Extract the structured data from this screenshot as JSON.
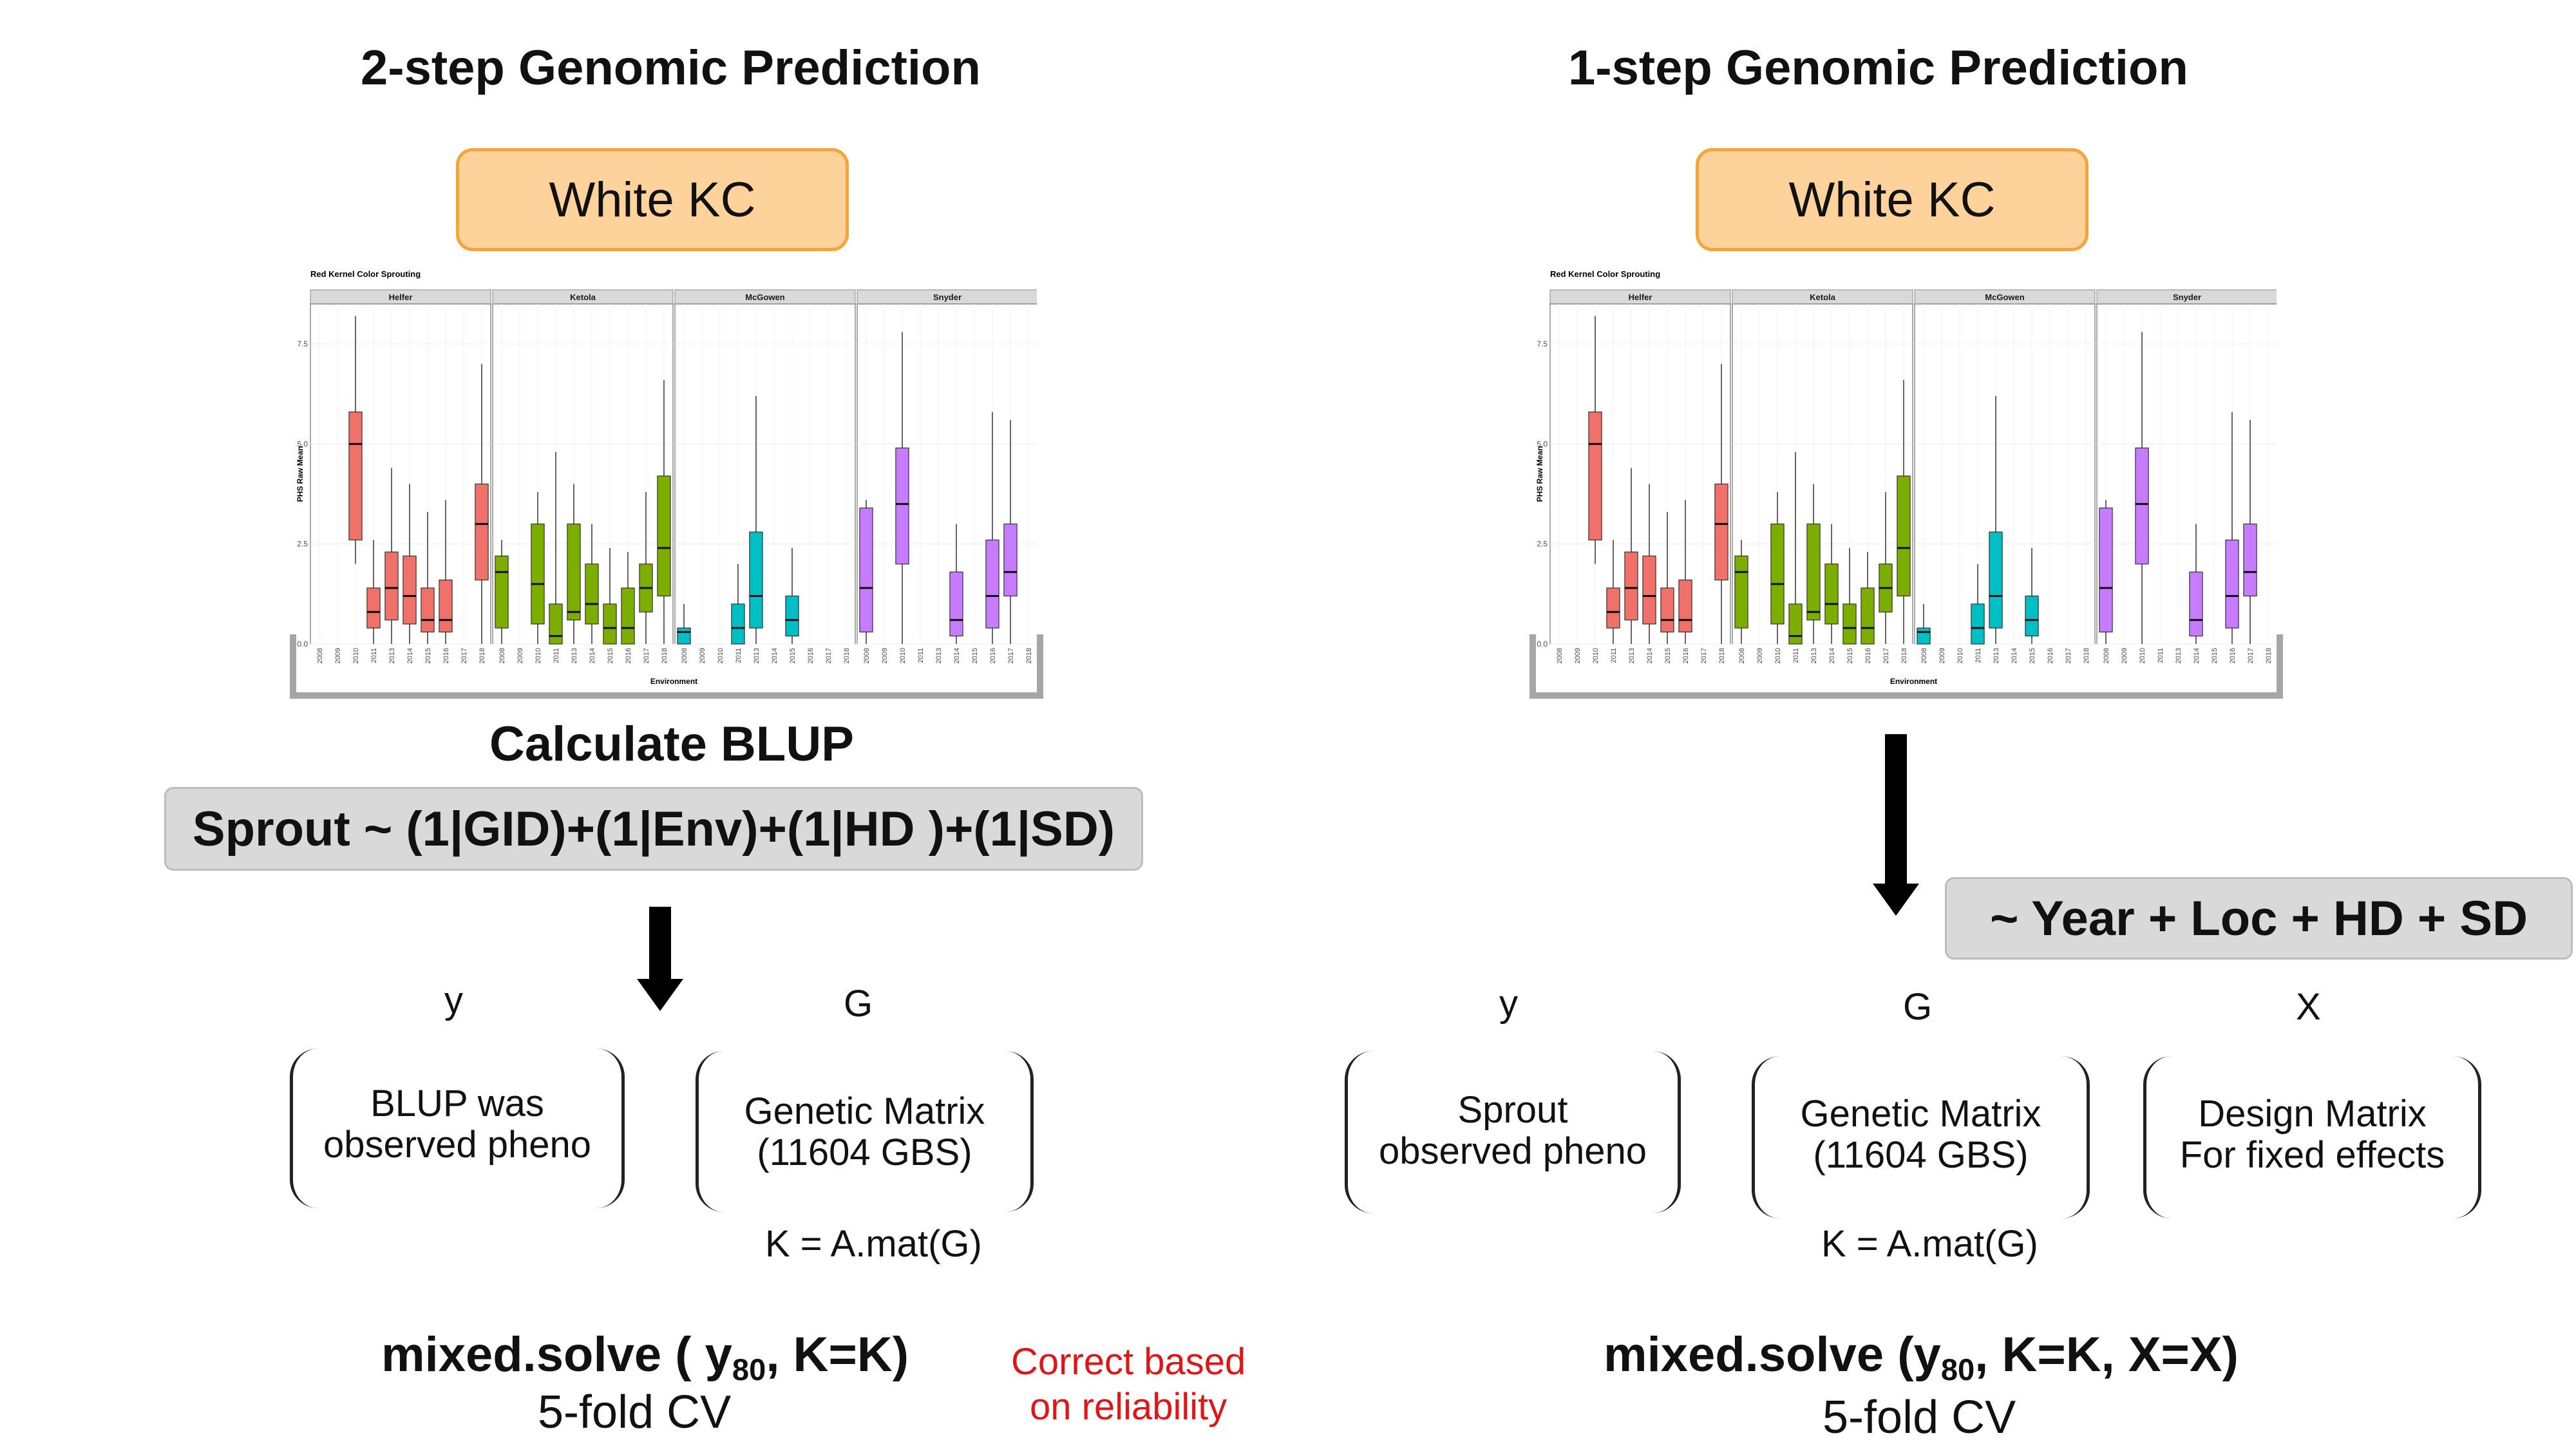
{
  "left": {
    "title": "2-step Genomic Prediction",
    "trait_label": "White KC",
    "calc_heading": "Calculate BLUP",
    "model_formula": "Sprout ~ (1|GID)+(1|Env)+(1|HD )+(1|SD)",
    "y_label": "y",
    "g_label": "G",
    "y_text_l1": "BLUP was",
    "y_text_l2": "observed pheno",
    "g_text_l1": "Genetic Matrix",
    "g_text_l2": "(11604 GBS)",
    "kinship": "K = A.mat(G)",
    "solve_pre": "mixed.solve ( y",
    "solve_sub": "80",
    "solve_post": ", K=K)",
    "cv": "5-fold CV",
    "note_l1": "Correct based",
    "note_l2": "on reliability"
  },
  "right": {
    "title": "1-step Genomic Prediction",
    "trait_label": "White KC",
    "fixed_formula": "~ Year + Loc + HD + SD",
    "y_label": "y",
    "g_label": "G",
    "x_label": "X",
    "y_text_l1": "Sprout",
    "y_text_l2": "observed pheno",
    "g_text_l1": "Genetic Matrix",
    "g_text_l2": "(11604 GBS)",
    "x_text_l1": "Design Matrix",
    "x_text_l2": "For fixed effects",
    "kinship": "K = A.mat(G)",
    "solve_pre": "mixed.solve (y",
    "solve_sub": "80",
    "solve_post": ", K=K, X=X)",
    "cv": "5-fold CV"
  },
  "colors": {
    "trait_fill": "#fdd39b",
    "trait_border": "#f5a43a",
    "formula_box": "#d9d9d9",
    "note_red": "#e01616",
    "Helfer": "#f0706a",
    "Ketola": "#7cae00",
    "McGowen": "#00bfc4",
    "Snyder": "#c77cff"
  },
  "chart_data": [
    {
      "type": "boxplot",
      "title": "Red Kernel Color Sprouting",
      "xlabel": "Environment",
      "ylabel": "PHS Raw Mean",
      "ylim": [
        0,
        8.5
      ],
      "yticks": [
        0.0,
        2.5,
        5.0,
        7.5
      ],
      "ytick_labels": [
        "0.0",
        "2.5",
        "5.0",
        "7.5"
      ],
      "categories": [
        "2008",
        "2009",
        "2010",
        "2011",
        "2013",
        "2014",
        "2015",
        "2016",
        "2017",
        "2018"
      ],
      "panels": [
        {
          "name": "Helfer",
          "boxes": [
            {
              "year": "2010",
              "min": 2.0,
              "q1": 2.6,
              "median": 5.0,
              "q3": 5.8,
              "max": 8.2
            },
            {
              "year": "2011",
              "min": 0.0,
              "q1": 0.4,
              "median": 0.8,
              "q3": 1.4,
              "max": 2.6
            },
            {
              "year": "2013",
              "min": 0.0,
              "q1": 0.6,
              "median": 1.4,
              "q3": 2.3,
              "max": 4.4
            },
            {
              "year": "2014",
              "min": 0.0,
              "q1": 0.5,
              "median": 1.2,
              "q3": 2.2,
              "max": 4.0
            },
            {
              "year": "2015",
              "min": 0.0,
              "q1": 0.3,
              "median": 0.6,
              "q3": 1.4,
              "max": 3.3
            },
            {
              "year": "2016",
              "min": 0.0,
              "q1": 0.3,
              "median": 0.6,
              "q3": 1.6,
              "max": 3.6
            },
            {
              "year": "2018",
              "min": 0.0,
              "q1": 1.6,
              "median": 3.0,
              "q3": 4.0,
              "max": 7.0
            }
          ]
        },
        {
          "name": "Ketola",
          "boxes": [
            {
              "year": "2008",
              "min": 0.0,
              "q1": 0.4,
              "median": 1.8,
              "q3": 2.2,
              "max": 2.6
            },
            {
              "year": "2010",
              "min": 0.0,
              "q1": 0.5,
              "median": 1.5,
              "q3": 3.0,
              "max": 3.8
            },
            {
              "year": "2011",
              "min": 0.0,
              "q1": 0.0,
              "median": 0.2,
              "q3": 1.0,
              "max": 4.8
            },
            {
              "year": "2013",
              "min": 0.0,
              "q1": 0.6,
              "median": 0.8,
              "q3": 3.0,
              "max": 4.0
            },
            {
              "year": "2014",
              "min": 0.0,
              "q1": 0.5,
              "median": 1.0,
              "q3": 2.0,
              "max": 3.0
            },
            {
              "year": "2015",
              "min": 0.0,
              "q1": 0.0,
              "median": 0.4,
              "q3": 1.0,
              "max": 2.4
            },
            {
              "year": "2016",
              "min": 0.0,
              "q1": 0.0,
              "median": 0.4,
              "q3": 1.4,
              "max": 2.3
            },
            {
              "year": "2017",
              "min": 0.0,
              "q1": 0.8,
              "median": 1.4,
              "q3": 2.0,
              "max": 3.8
            },
            {
              "year": "2018",
              "min": 0.0,
              "q1": 1.2,
              "median": 2.4,
              "q3": 4.2,
              "max": 6.6
            }
          ]
        },
        {
          "name": "McGowen",
          "boxes": [
            {
              "year": "2008",
              "min": 0.0,
              "q1": 0.0,
              "median": 0.3,
              "q3": 0.4,
              "max": 1.0
            },
            {
              "year": "2011",
              "min": 0.0,
              "q1": 0.0,
              "median": 0.4,
              "q3": 1.0,
              "max": 2.0
            },
            {
              "year": "2013",
              "min": 0.0,
              "q1": 0.4,
              "median": 1.2,
              "q3": 2.8,
              "max": 6.2
            },
            {
              "year": "2015",
              "min": 0.0,
              "q1": 0.2,
              "median": 0.6,
              "q3": 1.2,
              "max": 2.4
            }
          ]
        },
        {
          "name": "Snyder",
          "boxes": [
            {
              "year": "2008",
              "min": 0.0,
              "q1": 0.3,
              "median": 1.4,
              "q3": 3.4,
              "max": 3.6
            },
            {
              "year": "2010",
              "min": 0.0,
              "q1": 2.0,
              "median": 3.5,
              "q3": 4.9,
              "max": 7.8
            },
            {
              "year": "2014",
              "min": 0.0,
              "q1": 0.2,
              "median": 0.6,
              "q3": 1.8,
              "max": 3.0
            },
            {
              "year": "2016",
              "min": 0.0,
              "q1": 0.4,
              "median": 1.2,
              "q3": 2.6,
              "max": 5.8
            },
            {
              "year": "2017",
              "min": 0.0,
              "q1": 1.2,
              "median": 1.8,
              "q3": 3.0,
              "max": 5.6
            }
          ]
        }
      ]
    }
  ]
}
